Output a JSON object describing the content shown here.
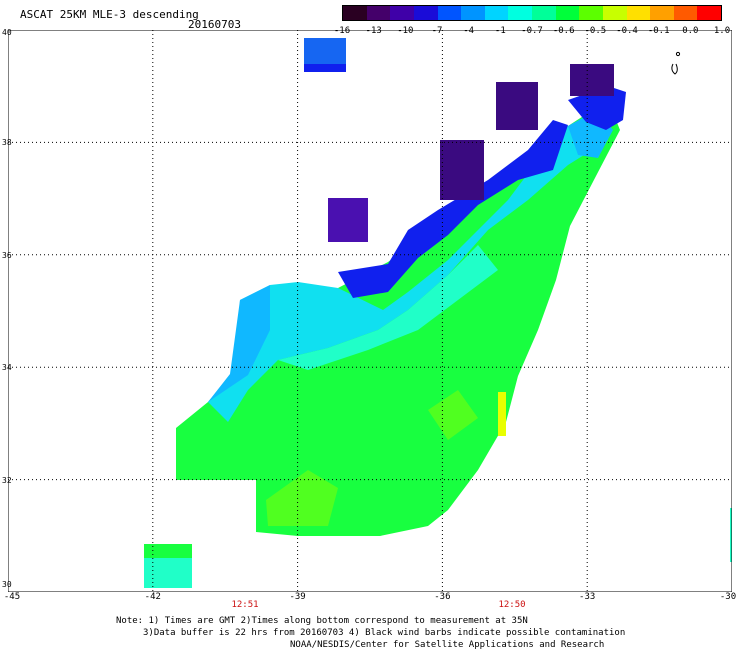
{
  "title": "ASCAT 25KM MLE-3 descending",
  "date": "20160703",
  "colorscale": {
    "labels": [
      "-16",
      "-13",
      "-10",
      "-7",
      "-4",
      "-1",
      "-0.7",
      "-0.6",
      "-0.5",
      "-0.4",
      "-0.1",
      "0.0",
      "1.0"
    ],
    "colors": [
      "#2a0022",
      "#44006a",
      "#3f00a8",
      "#1a0cd8",
      "#0055ff",
      "#0094ff",
      "#00d4ff",
      "#00ffe0",
      "#00ff99",
      "#00ff3a",
      "#5cff00",
      "#c8ff00",
      "#ffe000",
      "#ffa000",
      "#ff5a00",
      "#ff0000"
    ]
  },
  "map": {
    "lon_labels": [
      "-45",
      "-42",
      "-39",
      "-36",
      "-33",
      "-30"
    ],
    "lat_labels": [
      "40",
      "38",
      "36",
      "34",
      "32",
      "30"
    ],
    "pass_times": [
      "12:51",
      "12:50"
    ],
    "swath_colors": {
      "purple": "#4a10b0",
      "dark_purple": "#3a0a80",
      "blue": "#1020ee",
      "mid_blue": "#1666f2",
      "light_blue": "#10b8ff",
      "cyan": "#10e0f0",
      "aqua": "#20ffc8",
      "green": "#18ff40",
      "light_green": "#50ff20",
      "yellow": "#e8ff00"
    }
  },
  "notes": [
    "Note: 1) Times are GMT 2)Times along bottom correspond to measurement at 35N",
    "3)Data buffer is 22 hrs from 20160703 4) Black wind barbs indicate possible contamination",
    "NOAA/NESDIS/Center for Satellite Applications and Research"
  ]
}
